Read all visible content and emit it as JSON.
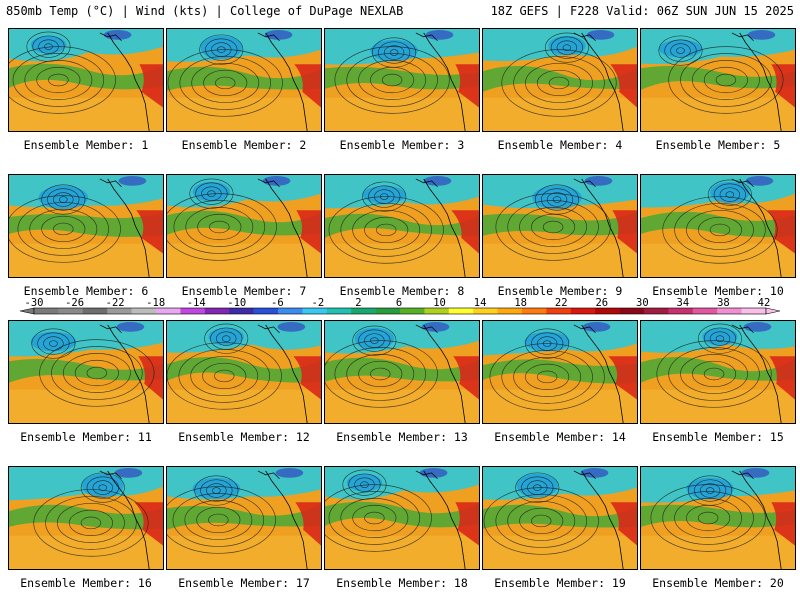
{
  "header": {
    "title_left": "850mb Temp (°C) | Wind (kts) | College of DuPage NEXLAB",
    "title_right": "18Z GEFS | F228 Valid: 06Z SUN JUN 15 2025"
  },
  "panel_label_prefix": "Ensemble Member:",
  "members": [
    "1",
    "2",
    "3",
    "4",
    "5",
    "6",
    "7",
    "8",
    "9",
    "10",
    "11",
    "12",
    "13",
    "14",
    "15",
    "16",
    "17",
    "18",
    "19",
    "20"
  ],
  "colorbar": {
    "ticks": [
      "-30",
      "-26",
      "-22",
      "-18",
      "-14",
      "-10",
      "-6",
      "-2",
      "2",
      "6",
      "10",
      "14",
      "18",
      "22",
      "26",
      "30",
      "34",
      "38",
      "42"
    ],
    "colors": [
      "#7a7a7a",
      "#8a8a8a",
      "#6e6e6e",
      "#9a9a9a",
      "#bcbcbc",
      "#e8a8f0",
      "#c048e0",
      "#8028b0",
      "#3c2ca8",
      "#2850d8",
      "#3c8cf0",
      "#38c8f0",
      "#22c0b0",
      "#1aa870",
      "#2a9c40",
      "#58b028",
      "#b0d020",
      "#ffff30",
      "#ffd020",
      "#ffa810",
      "#ff7a10",
      "#f04010",
      "#d81810",
      "#b00808",
      "#8c0818",
      "#a01c40",
      "#c83070",
      "#e058a0",
      "#f090d0",
      "#f8c0e8"
    ]
  },
  "colors": {
    "warm": "#f0a020",
    "cool": "#2cc8d8",
    "green": "#48a838",
    "red": "#d82818",
    "purple": "#3030c0"
  }
}
